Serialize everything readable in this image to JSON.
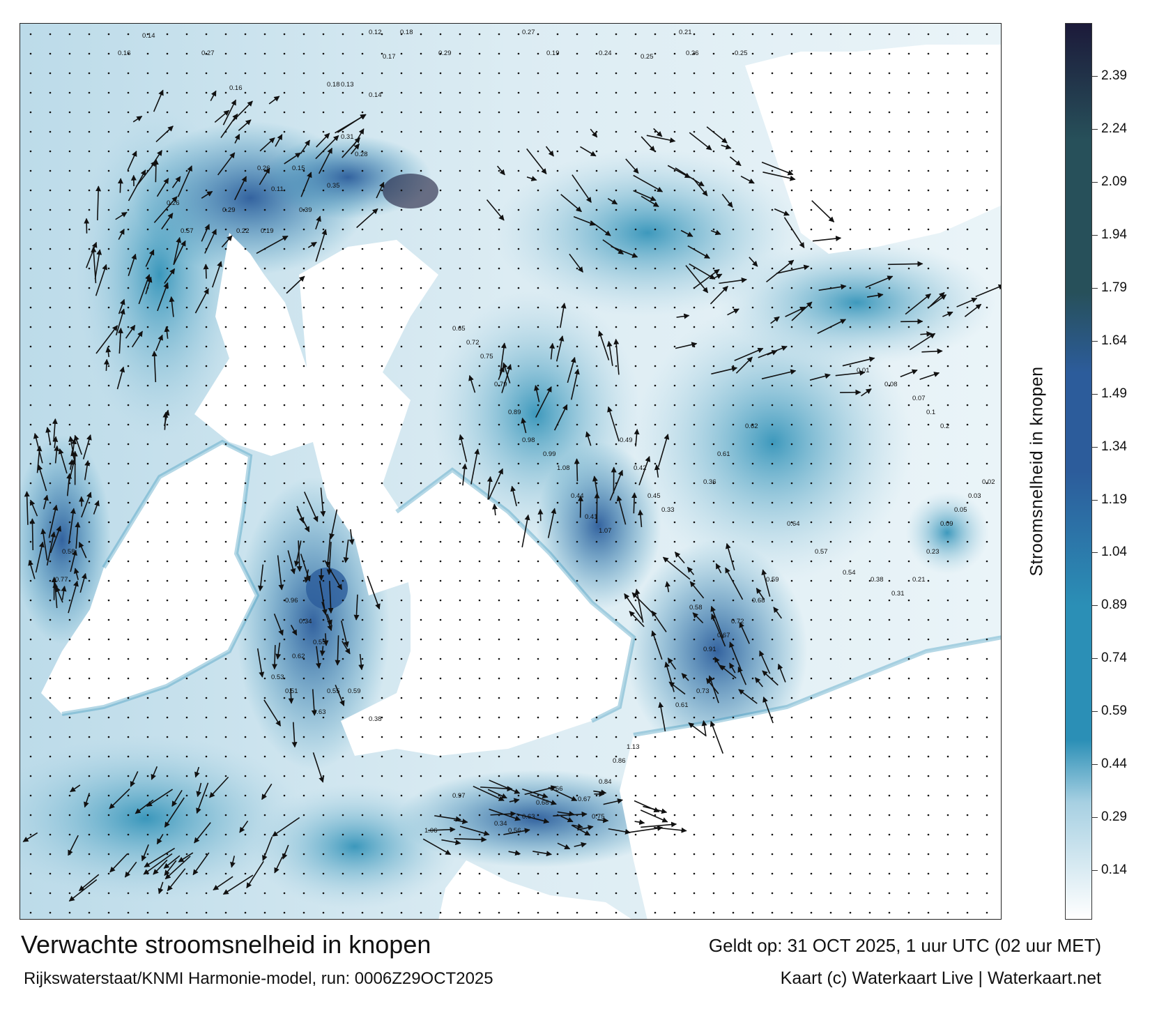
{
  "map": {
    "title": "Verwachte stroomsnelheid in knopen",
    "model_run": "Rijkswaterstaat/KNMI Harmonie-model, run: 0006Z29OCT2025",
    "valid_time": "Geldt op: 31 OCT 2025, 1 uur UTC (02 uur MET)",
    "credit": "Kaart (c) Waterkaart Live | Waterkaart.net"
  },
  "colorbar": {
    "label": "Stroomsnelheid in knopen",
    "ticks": [
      "2.39",
      "2.24",
      "2.09",
      "1.94",
      "1.79",
      "1.64",
      "1.49",
      "1.34",
      "1.19",
      "1.04",
      "0.89",
      "0.74",
      "0.59",
      "0.44",
      "0.29",
      "0.14"
    ],
    "tick_values": [
      2.39,
      2.24,
      2.09,
      1.94,
      1.79,
      1.64,
      1.49,
      1.34,
      1.19,
      1.04,
      0.89,
      0.74,
      0.59,
      0.44,
      0.29,
      0.14
    ],
    "min": 0.0,
    "max": 2.54,
    "colors": {
      "low": "#ffffff",
      "light": "#a7d0e2",
      "mid": "#2b8fb6",
      "high": "#2c5c9b",
      "dark_green": "#27505a",
      "darkest": "#1c1a3a"
    }
  },
  "speed_labels": [
    {
      "v": "0.14"
    },
    {
      "v": "0.16"
    },
    {
      "v": "0.27"
    },
    {
      "v": "0.12"
    },
    {
      "v": "0.18"
    },
    {
      "v": "0.29"
    },
    {
      "v": "0.27"
    },
    {
      "v": "0.19"
    },
    {
      "v": "0.24"
    },
    {
      "v": "0.25"
    },
    {
      "v": "0.21"
    },
    {
      "v": "0.26"
    },
    {
      "v": "0.25"
    },
    {
      "v": "0.18"
    },
    {
      "v": "0.13"
    },
    {
      "v": "0.14"
    },
    {
      "v": "0.17"
    },
    {
      "v": "0.16"
    },
    {
      "v": "0.31"
    },
    {
      "v": "0.28"
    },
    {
      "v": "0.26"
    },
    {
      "v": "0.11"
    },
    {
      "v": "0.39"
    },
    {
      "v": "0.35"
    },
    {
      "v": "0.29"
    },
    {
      "v": "0.22"
    },
    {
      "v": "0.19"
    },
    {
      "v": "0.15"
    },
    {
      "v": "0.26"
    },
    {
      "v": "0.57"
    },
    {
      "v": "0.58"
    },
    {
      "v": "0.77"
    },
    {
      "v": "0.96"
    },
    {
      "v": "0.34"
    },
    {
      "v": "0.55"
    },
    {
      "v": "0.62"
    },
    {
      "v": "0.53"
    },
    {
      "v": "0.51"
    },
    {
      "v": "0.63"
    },
    {
      "v": "0.55"
    },
    {
      "v": "0.59"
    },
    {
      "v": "0.38"
    },
    {
      "v": "0.68"
    },
    {
      "v": "0.63"
    },
    {
      "v": "0.34"
    },
    {
      "v": "0.56"
    },
    {
      "v": "0.66"
    },
    {
      "v": "0.67"
    },
    {
      "v": "0.75"
    },
    {
      "v": "0.84"
    },
    {
      "v": "0.86"
    },
    {
      "v": "1.13"
    },
    {
      "v": "0.97"
    },
    {
      "v": "1.06"
    },
    {
      "v": "0.91"
    },
    {
      "v": "0.67"
    },
    {
      "v": "0.72"
    },
    {
      "v": "0.58"
    },
    {
      "v": "0.61"
    },
    {
      "v": "0.73"
    },
    {
      "v": "0.68"
    },
    {
      "v": "0.59"
    },
    {
      "v": "0.44"
    },
    {
      "v": "0.41"
    },
    {
      "v": "1.07"
    },
    {
      "v": "1.08"
    },
    {
      "v": "0.99"
    },
    {
      "v": "0.98"
    },
    {
      "v": "0.89"
    },
    {
      "v": "0.79"
    },
    {
      "v": "0.75"
    },
    {
      "v": "0.72"
    },
    {
      "v": "0.65"
    },
    {
      "v": "0.49"
    },
    {
      "v": "0.42"
    },
    {
      "v": "0.45"
    },
    {
      "v": "0.33"
    },
    {
      "v": "0.36"
    },
    {
      "v": "0.61"
    },
    {
      "v": "0.62"
    },
    {
      "v": "0.64"
    },
    {
      "v": "0.57"
    },
    {
      "v": "0.54"
    },
    {
      "v": "0.38"
    },
    {
      "v": "0.31"
    },
    {
      "v": "0.21"
    },
    {
      "v": "0.23"
    },
    {
      "v": "0.09"
    },
    {
      "v": "0.05"
    },
    {
      "v": "0.03"
    },
    {
      "v": "0.02"
    },
    {
      "v": "0.01"
    },
    {
      "v": "0.08"
    },
    {
      "v": "0.07"
    },
    {
      "v": "0.1"
    },
    {
      "v": "0.2"
    }
  ]
}
